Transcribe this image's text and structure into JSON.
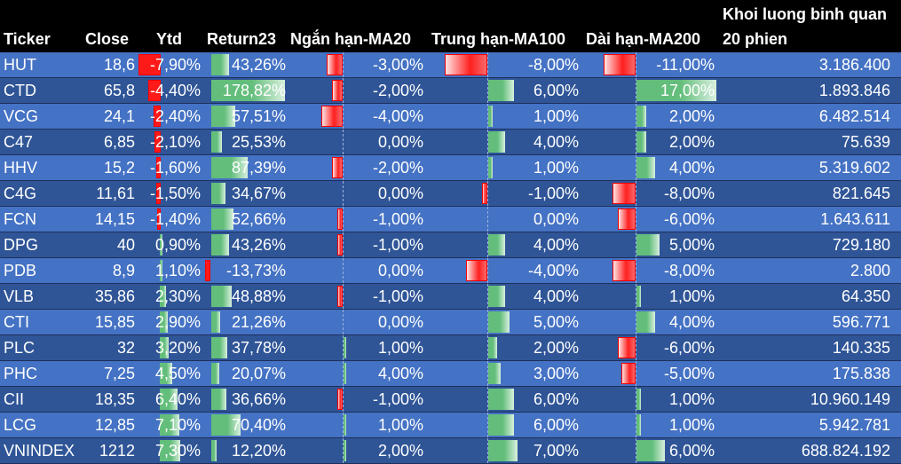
{
  "header": {
    "ticker": "Ticker",
    "close": "Close",
    "ytd": "Ytd",
    "return23": "Return23",
    "ma20": "Ngắn hạn-MA20",
    "ma100": "Trung hạn-MA100",
    "ma200": "Dài hạn-MA200",
    "volume_line1": "Khoi luong binh quan",
    "volume_line2": "20 phien"
  },
  "colors": {
    "background": "#000000",
    "row_light": "#4472c4",
    "row_dark": "#2f5597",
    "bar_positive": "#63be7b",
    "bar_negative": "#ff0000"
  },
  "rows": [
    {
      "ticker": "HUT",
      "close": "18,6",
      "ytd": "-7,90%",
      "return23": "43,26%",
      "ma20": "-3,00%",
      "ma100": "-8,00%",
      "ma200": "-11,00%",
      "volume": "3.186.400"
    },
    {
      "ticker": "CTD",
      "close": "65,8",
      "ytd": "-4,40%",
      "return23": "178,82%",
      "ma20": "-2,00%",
      "ma100": "6,00%",
      "ma200": "17,00%",
      "volume": "1.893.846"
    },
    {
      "ticker": "VCG",
      "close": "24,1",
      "ytd": "-2,40%",
      "return23": "57,51%",
      "ma20": "-4,00%",
      "ma100": "1,00%",
      "ma200": "2,00%",
      "volume": "6.482.514"
    },
    {
      "ticker": "C47",
      "close": "6,85",
      "ytd": "-2,10%",
      "return23": "25,53%",
      "ma20": "0,00%",
      "ma100": "4,00%",
      "ma200": "2,00%",
      "volume": "75.639"
    },
    {
      "ticker": "HHV",
      "close": "15,2",
      "ytd": "-1,60%",
      "return23": "87,39%",
      "ma20": "-2,00%",
      "ma100": "1,00%",
      "ma200": "4,00%",
      "volume": "5.319.602"
    },
    {
      "ticker": "C4G",
      "close": "11,61",
      "ytd": "-1,50%",
      "return23": "34,67%",
      "ma20": "0,00%",
      "ma100": "-1,00%",
      "ma200": "-8,00%",
      "volume": "821.645"
    },
    {
      "ticker": "FCN",
      "close": "14,15",
      "ytd": "-1,40%",
      "return23": "52,66%",
      "ma20": "-1,00%",
      "ma100": "0,00%",
      "ma200": "-6,00%",
      "volume": "1.643.611"
    },
    {
      "ticker": "DPG",
      "close": "40",
      "ytd": "0,90%",
      "return23": "43,26%",
      "ma20": "-1,00%",
      "ma100": "4,00%",
      "ma200": "5,00%",
      "volume": "729.180"
    },
    {
      "ticker": "PDB",
      "close": "8,9",
      "ytd": "1,10%",
      "return23": "-13,73%",
      "ma20": "0,00%",
      "ma100": "-4,00%",
      "ma200": "-8,00%",
      "volume": "2.800"
    },
    {
      "ticker": "VLB",
      "close": "35,86",
      "ytd": "2,30%",
      "return23": "48,88%",
      "ma20": "-1,00%",
      "ma100": "4,00%",
      "ma200": "1,00%",
      "volume": "64.350"
    },
    {
      "ticker": "CTI",
      "close": "15,85",
      "ytd": "2,90%",
      "return23": "21,26%",
      "ma20": "0,00%",
      "ma100": "5,00%",
      "ma200": "4,00%",
      "volume": "596.771"
    },
    {
      "ticker": "PLC",
      "close": "32",
      "ytd": "3,20%",
      "return23": "37,78%",
      "ma20": "1,00%",
      "ma100": "2,00%",
      "ma200": "-6,00%",
      "volume": "140.335"
    },
    {
      "ticker": "PHC",
      "close": "7,25",
      "ytd": "4,50%",
      "return23": "20,07%",
      "ma20": "4,00%",
      "ma100": "3,00%",
      "ma200": "-5,00%",
      "volume": "175.838"
    },
    {
      "ticker": "CII",
      "close": "18,35",
      "ytd": "6,40%",
      "return23": "36,66%",
      "ma20": "-1,00%",
      "ma100": "6,00%",
      "ma200": "1,00%",
      "volume": "10.960.149"
    },
    {
      "ticker": "LCG",
      "close": "12,85",
      "ytd": "7,10%",
      "return23": "70,40%",
      "ma20": "1,00%",
      "ma100": "6,00%",
      "ma200": "1,00%",
      "volume": "5.942.781"
    },
    {
      "ticker": "VNINDEX",
      "close": "1212",
      "ytd": "7,30%",
      "return23": "12,20%",
      "ma20": "2,00%",
      "ma100": "7,00%",
      "ma200": "6,00%",
      "volume": "688.824.192"
    }
  ]
}
